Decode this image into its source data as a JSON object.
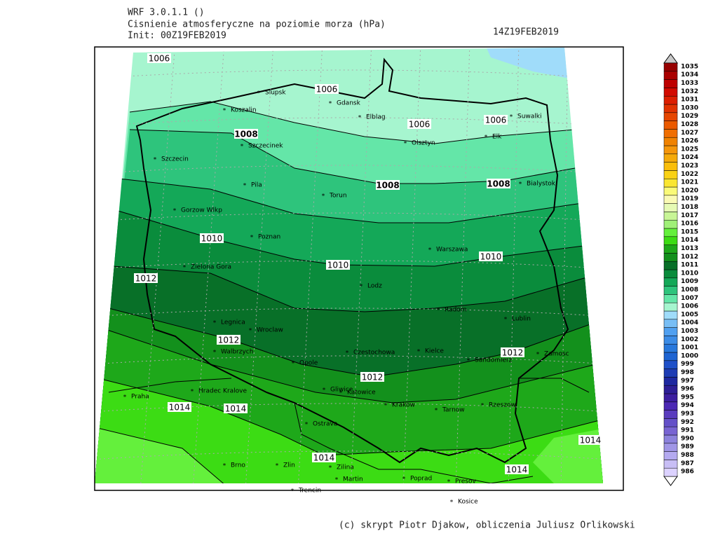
{
  "header": {
    "model": "WRF 3.0.1.1 ()",
    "title": "Cisnienie atmosferyczne na poziomie morza (hPa)",
    "init": "Init: 00Z19FEB2019",
    "valid": "14Z19FEB2019"
  },
  "cities": [
    "Slupsk",
    "Koszalin",
    "Gdansk",
    "Elblag",
    "Suwalki",
    "Olsztyn",
    "Elk",
    "Szczecinek",
    "Szczecin",
    "Pila",
    "Torun",
    "Bialystok",
    "Gorzow Wlkp",
    "Poznan",
    "Warszawa",
    "Zielona Gora",
    "Lodz",
    "Radom",
    "Lublin",
    "Legnica",
    "Wroclaw",
    "Walbrzych",
    "Opole",
    "Czestochowa",
    "Kielce",
    "Sandomierz",
    "Zamosc",
    "Gliwice",
    "Katowice",
    "Hradec Kralove",
    "Praha",
    "Krakow",
    "Tarnow",
    "Rzeszow",
    "Ostrava",
    "Brno",
    "Zlin",
    "Zilina",
    "Martin",
    "Poprad",
    "Presov",
    "Trencin",
    "Kosice"
  ],
  "isobar_labels": [
    1006,
    1006,
    1006,
    1006,
    1008,
    1008,
    1008,
    1010,
    1010,
    1010,
    1012,
    1012,
    1012,
    1012,
    1014,
    1014,
    1014,
    1014,
    1014
  ],
  "colorbar": {
    "levels": [
      986,
      987,
      988,
      989,
      990,
      991,
      992,
      993,
      994,
      995,
      996,
      997,
      998,
      999,
      1000,
      1001,
      1002,
      1003,
      1004,
      1005,
      1006,
      1007,
      1008,
      1009,
      1010,
      1011,
      1012,
      1013,
      1014,
      1015,
      1016,
      1017,
      1018,
      1019,
      1020,
      1021,
      1022,
      1023,
      1024,
      1025,
      1026,
      1027,
      1028,
      1029,
      1030,
      1031,
      1032,
      1033,
      1034,
      1035
    ],
    "colors": [
      "#dcd2ff",
      "#c8bef5",
      "#b4aaf0",
      "#a096e6",
      "#8c82dc",
      "#7864d2",
      "#6450c8",
      "#5a3cbe",
      "#4b28b4",
      "#3c1ea0",
      "#2d1e96",
      "#1e28a0",
      "#1e3cb4",
      "#1e50c8",
      "#1e64d2",
      "#2878dc",
      "#3c8ce6",
      "#50a0f0",
      "#78bef5",
      "#a0dcfa",
      "#a6f5cf",
      "#64e6a8",
      "#2ec47c",
      "#14a858",
      "#0a8c3c",
      "#087028",
      "#13901c",
      "#1ea81a",
      "#3cdc14",
      "#64f03c",
      "#a0f078",
      "#c8f596",
      "#e6fab4",
      "#fafab4",
      "#fafa78",
      "#fae632",
      "#fad214",
      "#fabe0a",
      "#f5aa0a",
      "#f5960a",
      "#f08200",
      "#f06e00",
      "#eb5a00",
      "#e64600",
      "#e13200",
      "#dc1e00",
      "#d20a00",
      "#be0000",
      "#aa0000",
      "#960000"
    ]
  },
  "footer": "(c) skrypt Piotr Djakow, obliczenia Juliusz Orlikowski"
}
